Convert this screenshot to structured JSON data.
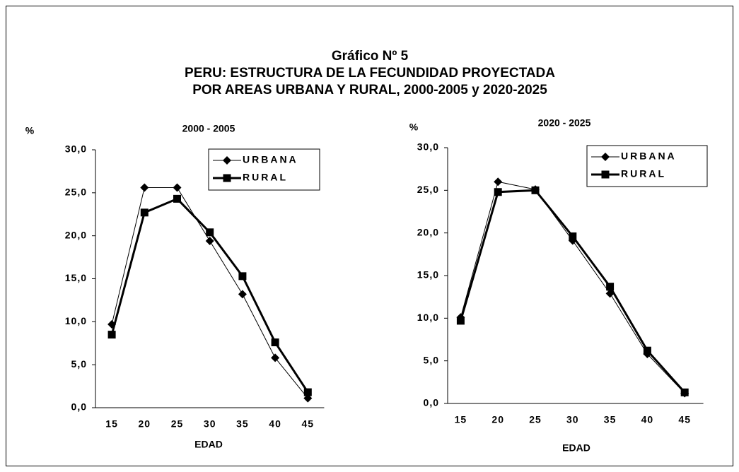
{
  "title": [
    "Gráfico Nº 5",
    "PERU: ESTRUCTURA DE LA FECUNDIDAD PROYECTADA",
    "POR AREAS URBANA Y RURAL, 2000-2005 y 2020-2025"
  ],
  "chart_data": [
    {
      "type": "line",
      "title": "2000 - 2005",
      "y_label": "%",
      "x_label": "EDAD",
      "categories": [
        "15",
        "20",
        "25",
        "30",
        "35",
        "40",
        "45"
      ],
      "series": [
        {
          "name": "URBANA",
          "color": "#000000",
          "marker": "diamond",
          "values": [
            9.7,
            25.6,
            25.6,
            19.4,
            13.2,
            5.8,
            1.1
          ]
        },
        {
          "name": "RURAL",
          "color": "#000000",
          "marker": "square",
          "values": [
            8.5,
            22.7,
            24.3,
            20.4,
            15.3,
            7.6,
            1.8
          ]
        }
      ],
      "ylim": [
        0,
        30
      ],
      "yticks": [
        {
          "value": 0,
          "label": "0,0"
        },
        {
          "value": 5,
          "label": "5,0"
        },
        {
          "value": 10,
          "label": "10,0"
        },
        {
          "value": 15,
          "label": "15,0"
        },
        {
          "value": 20,
          "label": "20,0"
        },
        {
          "value": 25,
          "label": "25,0"
        },
        {
          "value": 30,
          "label": "30,0"
        }
      ],
      "legend": "upper right",
      "grid": false
    },
    {
      "type": "line",
      "title": "2020 - 2025",
      "y_label": "%",
      "x_label": "EDAD",
      "categories": [
        "15",
        "20",
        "25",
        "30",
        "35",
        "40",
        "45"
      ],
      "series": [
        {
          "name": "URBANA",
          "color": "#000000",
          "marker": "diamond",
          "values": [
            10.1,
            26.0,
            25.1,
            19.1,
            12.9,
            5.8,
            1.2
          ]
        },
        {
          "name": "RURAL",
          "color": "#000000",
          "marker": "square",
          "values": [
            9.7,
            24.8,
            25.0,
            19.6,
            13.7,
            6.2,
            1.3
          ]
        }
      ],
      "ylim": [
        0,
        30
      ],
      "yticks": [
        {
          "value": 0,
          "label": "0,0"
        },
        {
          "value": 5,
          "label": "5,0"
        },
        {
          "value": 10,
          "label": "10,0"
        },
        {
          "value": 15,
          "label": "15,0"
        },
        {
          "value": 20,
          "label": "20,0"
        },
        {
          "value": 25,
          "label": "25,0"
        },
        {
          "value": 30,
          "label": "30,0"
        }
      ],
      "legend": "upper right",
      "grid": false
    }
  ]
}
